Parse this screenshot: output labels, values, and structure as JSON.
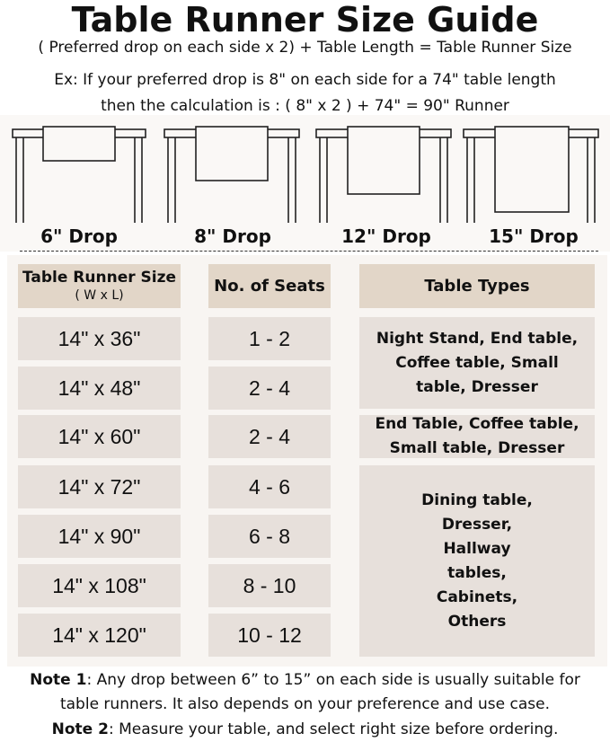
{
  "title": "Table Runner Size Guide",
  "formula": "( Preferred drop on each side x 2) + Table Length = Table Runner Size",
  "example_line1": "Ex: If your preferred drop is 8\" on each side for a 74\" table length",
  "example_line2": "then the calculation is : ( 8\" x 2 ) + 74\" = 90\" Runner",
  "drops": [
    "6\" Drop",
    "8\" Drop",
    "12\" Drop",
    "15\" Drop"
  ],
  "table": {
    "headers": {
      "size": "Table Runner Size",
      "size_sub": "( W x L)",
      "seats": "No. of Seats",
      "types": "Table Types"
    },
    "rows": [
      {
        "size": "14\" x 36\"",
        "seats": "1 - 2"
      },
      {
        "size": "14\" x 48\"",
        "seats": "2 - 4"
      },
      {
        "size": "14\" x 60\"",
        "seats": "2 - 4"
      },
      {
        "size": "14\" x 72\"",
        "seats": "4 - 6"
      },
      {
        "size": "14\" x 90\"",
        "seats": "6 - 8"
      },
      {
        "size": "14\" x 108\"",
        "seats": "8 - 10"
      },
      {
        "size": "14\" x 120\"",
        "seats": "10 - 12"
      }
    ],
    "types": [
      "Night Stand, End table, Coffee table, Small table, Dresser",
      "End Table, Coffee table, Small table, Dresser",
      "Dining table, Dresser, Hallway tables, Cabinets, Others"
    ]
  },
  "notes": [
    {
      "label": "Note 1",
      "text": ": Any drop between 6” to 15” on each side is usually suitable for",
      "text2": "table runners. It also depends on your preference and use case."
    },
    {
      "label": "Note 2",
      "text": ": Measure your table, and select right size before ordering."
    }
  ],
  "colors": {
    "header_bg": "#e2d6c8",
    "cell_bg": "#e7e0db",
    "panel_bg": "#f8f5f2"
  }
}
